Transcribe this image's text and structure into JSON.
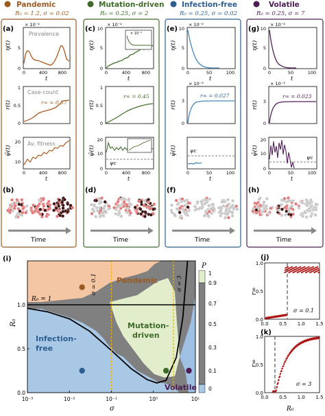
{
  "colors": {
    "pandemic": "#9b5a22",
    "pandemic_line": "#a8591e",
    "mutation": "#3e6b2a",
    "mutation_line": "#456f2f",
    "infection": "#2e5e8e",
    "infection_line": "#4a86b8",
    "volatile": "#4b1d52",
    "volatile_line": "#4e1f57",
    "region_pandemic": "#f5c6a3",
    "region_mutation": "#e2eecb",
    "region_infection": "#a9c8e6",
    "region_grey": "#808080",
    "region_volatile_blue": "#9dc0e3",
    "dashed_gold": "#f0b400",
    "ring_salmon": "#e07a7a",
    "ring_grey": "#c8c8c8",
    "ring_dark": "#3a1010"
  },
  "columns": [
    {
      "title": "Pandemic",
      "params": "R₀ = 1.2,  σ = 0.02",
      "panel_top": "(a)",
      "panel_bottom": "(b)",
      "labels": {
        "prev": "Prevalence",
        "case": "Case-count",
        "fit": "Av. fitness"
      },
      "r_inf": "r∞ = 0.57",
      "exp_eta": "× 10⁻²",
      "time": "Time"
    },
    {
      "title": "Mutation-driven",
      "params": "R₀ = 0.25,  σ = 2",
      "panel_top": "(c)",
      "panel_bottom": "(d)",
      "r_inf": "r∞ = 0.45",
      "exp_eta": "× 10⁻²",
      "exp_inset": "× 10⁻³",
      "psi_c": "ψc",
      "time": "Time"
    },
    {
      "title": "Infection-free",
      "params": "R₀ = 0.25,  σ = 0.02",
      "panel_top": "(e)",
      "panel_bottom": "(f)",
      "r_inf": "r∞ = 0.027",
      "exp_eta": "× 10⁻²",
      "exp_r": "× 10⁻²",
      "psi_c": "ψc",
      "time": "Time"
    },
    {
      "title": "Volatile",
      "params": "R₀ = 0.25,  σ = 7",
      "panel_top": "(g)",
      "panel_bottom": "(h)",
      "r_inf": "r∞ = 0.023",
      "exp_eta": "× 10⁻²",
      "exp_r": "× 10⁻²",
      "psi_c": "ψc",
      "time": "Time"
    }
  ],
  "axis_labels": {
    "eta": "η(t)",
    "r": "r(t)",
    "psi": "ψ̄(t)",
    "t": "t"
  },
  "ticks": {
    "t_full": [
      "0",
      "400",
      "800"
    ],
    "t_short": [
      "0",
      "50",
      "100"
    ],
    "eta": [
      "0",
      "5",
      "10"
    ],
    "eta_a": [
      "0",
      "5"
    ],
    "r_unit": [
      "0",
      "0.5",
      "1"
    ],
    "r_col3": [
      "0",
      "3"
    ],
    "r_col4": [
      "0",
      "3"
    ],
    "psi_a": [
      "10",
      "20"
    ],
    "psi_c": [
      "0",
      "10",
      "20"
    ],
    "psi_g": [
      "0",
      "10",
      "20"
    ]
  },
  "chart_data": [
    {
      "panel": "(i)",
      "type": "heatmap",
      "xlabel": "σ",
      "ylabel": "R₀",
      "xscale": "log",
      "xlim": [
        0.001,
        10
      ],
      "ylim": [
        0,
        1.5
      ],
      "x_ticks": [
        "10⁻³",
        "10⁻²",
        "10⁻¹",
        "10⁰",
        "10¹"
      ],
      "y_ticks": [
        "0.0",
        "0.5",
        "1.0"
      ],
      "region_labels": [
        "Pandemic",
        "Mutation-driven",
        "Infection-free",
        "Volatile"
      ],
      "annotations": [
        "R₀ = 1",
        "σ = 0.1",
        "σ = 3"
      ],
      "colorbar": {
        "label": "P",
        "ticks": [
          "1",
          "0.9",
          "0.7",
          "0.5",
          "0.3",
          "0.1",
          "0"
        ]
      },
      "points": [
        {
          "sigma": 0.02,
          "R0": 1.2,
          "series": "Pandemic"
        },
        {
          "sigma": 2,
          "R0": 0.25,
          "series": "Mutation-driven"
        },
        {
          "sigma": 0.02,
          "R0": 0.25,
          "series": "Infection-free"
        },
        {
          "sigma": 7,
          "R0": 0.25,
          "series": "Volatile"
        }
      ],
      "critical_curve": [
        [
          0.001,
          0.96
        ],
        [
          0.003,
          0.92
        ],
        [
          0.01,
          0.84
        ],
        [
          0.03,
          0.7
        ],
        [
          0.1,
          0.48
        ],
        [
          0.3,
          0.27
        ],
        [
          0.7,
          0.15
        ],
        [
          1.2,
          0.11
        ],
        [
          2,
          0.14
        ],
        [
          3.5,
          0.4
        ],
        [
          5,
          0.85
        ],
        [
          6.5,
          1.5
        ]
      ]
    },
    {
      "panel": "(j)",
      "type": "scatter",
      "xlabel": "",
      "ylabel": "r∞",
      "xlim": [
        0,
        1.5
      ],
      "ylim": [
        0,
        1
      ],
      "x_ticks": [
        "0.0",
        "0.5",
        "1.0",
        "1.5"
      ],
      "y_ticks": [
        "0.0",
        "0.5",
        "1.0"
      ],
      "annotation": "σ = 0.1",
      "threshold_x": 0.62
    },
    {
      "panel": "(k)",
      "type": "scatter",
      "xlabel": "R₀",
      "ylabel": "r∞",
      "xlim": [
        0,
        1.5
      ],
      "ylim": [
        0,
        1
      ],
      "x_ticks": [
        "0.0",
        "0.5",
        "1.0",
        "1.5"
      ],
      "y_ticks": [
        "0.0",
        "0.5",
        "1.0"
      ],
      "annotation": "σ = 3",
      "threshold_x": 0.28
    }
  ]
}
